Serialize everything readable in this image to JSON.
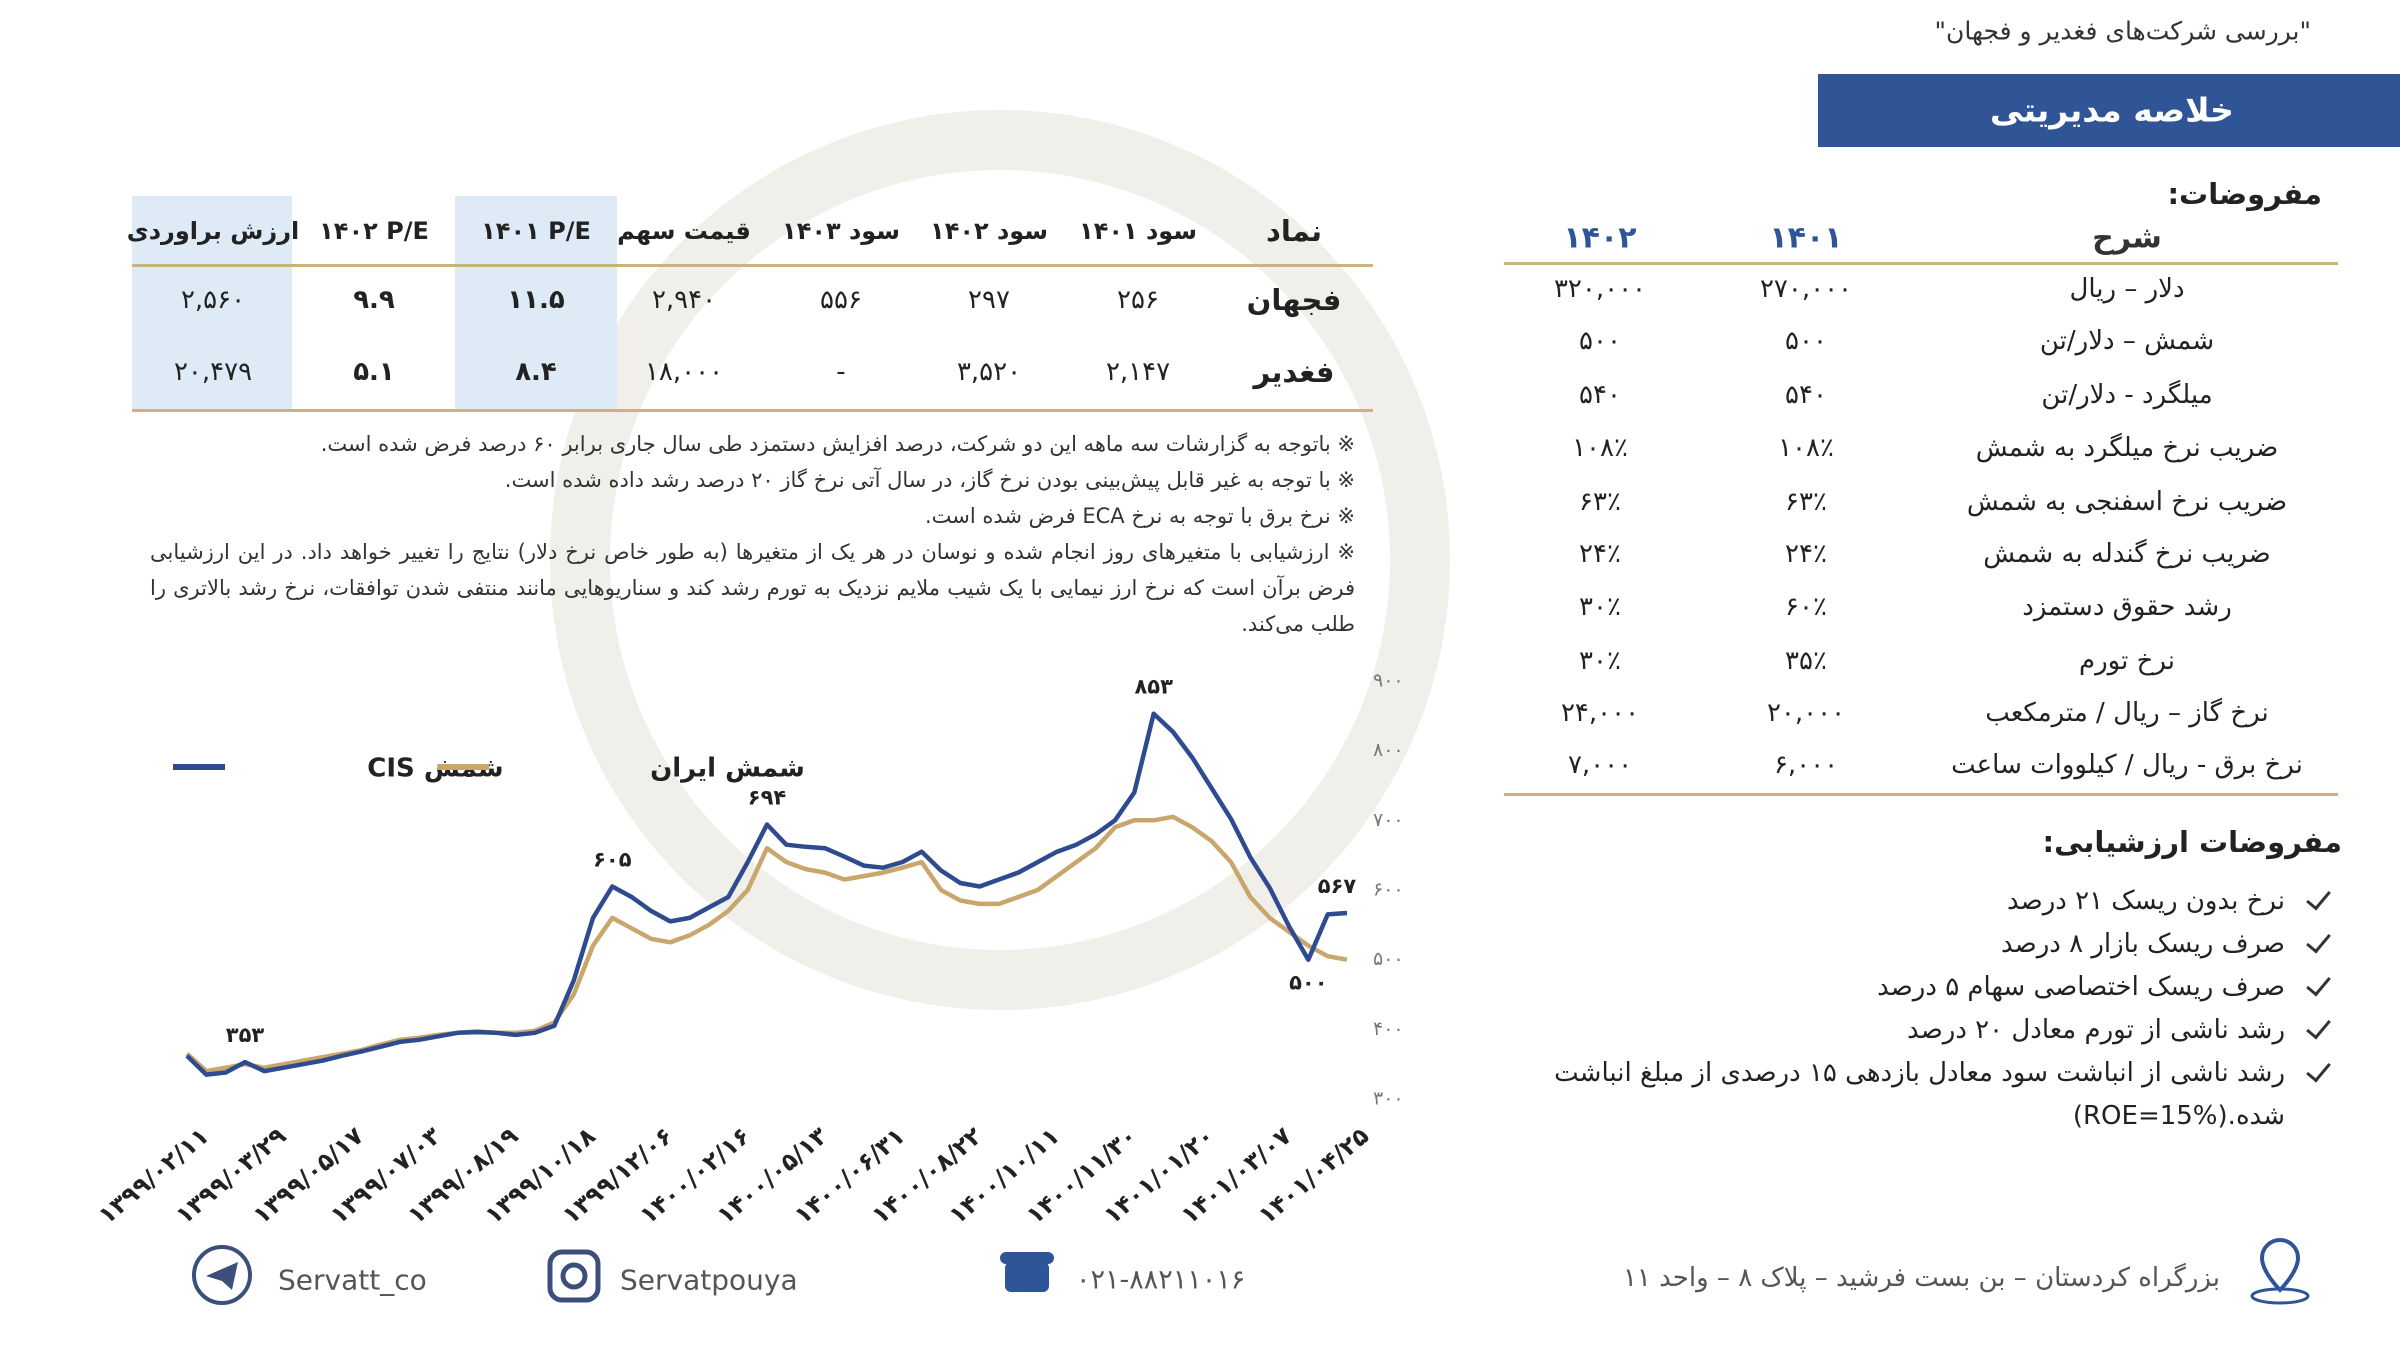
{
  "header": {
    "title": "\"بررسی شرکت‌های فغدیر و فجهان\""
  },
  "summary": {
    "title": "خلاصه مدیریتی"
  },
  "assumptions": {
    "title": "مفروضات:",
    "columns": [
      "شرح",
      "۱۴۰۱",
      "۱۴۰۲"
    ],
    "rows": [
      [
        "دلار – ریال",
        "۲۷۰,۰۰۰",
        "۳۲۰,۰۰۰"
      ],
      [
        "شمش – دلار/تن",
        "۵۰۰",
        "۵۰۰"
      ],
      [
        "میلگرد - دلار/تن",
        "۵۴۰",
        "۵۴۰"
      ],
      [
        "ضریب نرخ میلگرد به شمش",
        "۱۰۸٪",
        "۱۰۸٪"
      ],
      [
        "ضریب نرخ اسفنجی به شمش",
        "۶۳٪",
        "۶۳٪"
      ],
      [
        "ضریب نرخ گندله به شمش",
        "۲۴٪",
        "۲۴٪"
      ],
      [
        "رشد حقوق دستمزد",
        "۶۰٪",
        "۳۰٪"
      ],
      [
        "نرخ تورم",
        "۳۵٪",
        "۳۰٪"
      ],
      [
        "نرخ گاز – ریال / مترمکعب",
        "۲۰,۰۰۰",
        "۲۴,۰۰۰"
      ],
      [
        "نرخ برق - ریال / کیلووات ساعت",
        "۶,۰۰۰",
        "۷,۰۰۰"
      ]
    ]
  },
  "valuation_assumptions": {
    "title": "مفروضات ارزشیابی:",
    "items": [
      "نرخ بدون ریسک ۲۱ درصد",
      "صرف ریسک بازار ۸ درصد",
      "صرف ریسک اختصاصی سهام ۵ درصد",
      "رشد ناشی از تورم معادل ۲۰ درصد",
      "رشد ناشی از انباشت سود معادل بازدهی ۱۵ درصدی از مبلغ انباشت شده.(ROE=15%)"
    ]
  },
  "company_table": {
    "columns": [
      "نماد",
      "سود ۱۴۰۱",
      "سود ۱۴۰۲",
      "سود ۱۴۰۳",
      "قیمت سهم",
      "۱۴۰۱ P/E",
      "۱۴۰۲ P/E",
      "ارزش براوردی"
    ],
    "rows": [
      [
        "فجهان",
        "۲۵۶",
        "۲۹۷",
        "۵۵۶",
        "۲,۹۴۰",
        "۱۱.۵",
        "۹.۹",
        "۲,۵۶۰"
      ],
      [
        "فغدیر",
        "۲,۱۴۷",
        "۳,۵۲۰",
        "-",
        "۱۸,۰۰۰",
        "۸.۴",
        "۵.۱",
        "۲۰,۴۷۹"
      ]
    ]
  },
  "notes": [
    "※ باتوجه به گزارشات سه ماهه این دو شرکت، درصد افزایش دستمزد طی سال جاری برابر ۶۰ درصد فرض شده است.",
    "※ با توجه به غیر قابل پیش‌بینی بودن نرخ گاز، در سال آتی نرخ گاز ۲۰ درصد رشد داده شده است.",
    "※ نرخ برق با توجه به نرخ ECA فرض شده است.",
    "※ ارزشیابی با متغیرهای روز انجام شده و نوسان در هر یک از متغیرها (به طور خاص نرخ دلار) نتایج را تغییر خواهد داد. در این ارزشیابی فرض برآن است که نرخ ارز نیمایی با یک شیب ملایم نزدیک به تورم رشد کند و سناریوهایی مانند منتفی شدن توافقات، نرخ رشد بالاتری را طلب می‌کند."
  ],
  "chart_data": {
    "type": "line",
    "categories": [
      "۱۳۹۹/۰۲/۱۱",
      null,
      null,
      null,
      "۱۳۹۹/۰۳/۲۹",
      null,
      null,
      null,
      "۱۳۹۹/۰۵/۱۷",
      null,
      null,
      null,
      "۱۳۹۹/۰۷/۰۳",
      null,
      null,
      null,
      "۱۳۹۹/۰۸/۱۹",
      null,
      null,
      null,
      "۱۳۹۹/۱۰/۱۸",
      null,
      null,
      null,
      "۱۳۹۹/۱۲/۰۶",
      null,
      null,
      null,
      "۱۴۰۰/۰۲/۱۶",
      null,
      null,
      null,
      "۱۴۰۰/۰۵/۱۳",
      null,
      null,
      null,
      "۱۴۰۰/۰۶/۳۱",
      null,
      null,
      null,
      "۱۴۰۰/۰۸/۲۲",
      null,
      null,
      null,
      "۱۴۰۰/۱۰/۱۱",
      null,
      null,
      null,
      "۱۴۰۰/۱۱/۳۰",
      null,
      null,
      null,
      "۱۴۰۱/۰۱/۲۰",
      null,
      null,
      null,
      "۱۴۰۱/۰۳/۰۷",
      null,
      null,
      null,
      "۱۴۰۱/۰۴/۲۵"
    ],
    "series": [
      {
        "name": "شمش CIS",
        "color": "#2e4b8f",
        "values": [
          362,
          335,
          338,
          353,
          340,
          345,
          350,
          355,
          362,
          368,
          375,
          382,
          385,
          390,
          395,
          396,
          395,
          392,
          395,
          405,
          470,
          560,
          605,
          590,
          570,
          555,
          560,
          575,
          590,
          640,
          694,
          665,
          662,
          660,
          648,
          635,
          632,
          640,
          655,
          628,
          610,
          605,
          615,
          625,
          640,
          655,
          665,
          680,
          700,
          740,
          853,
          827,
          790,
          746,
          702,
          647,
          603,
          548,
          500,
          565,
          567
        ],
        "value_labels": [
          null,
          null,
          null,
          "۳۵۳",
          null,
          null,
          null,
          null,
          null,
          null,
          null,
          null,
          null,
          null,
          null,
          null,
          null,
          null,
          null,
          null,
          null,
          null,
          "۶۰۵",
          null,
          null,
          null,
          null,
          null,
          null,
          null,
          "۶۹۴",
          null,
          null,
          null,
          null,
          null,
          null,
          null,
          null,
          null,
          null,
          null,
          null,
          null,
          null,
          null,
          null,
          null,
          null,
          null,
          "۸۵۳",
          null,
          null,
          null,
          null,
          null,
          null,
          null,
          "۵۰۰",
          null,
          "۵۶۷"
        ]
      },
      {
        "name": "شمش ایران",
        "color": "#c9a66b",
        "values": [
          365,
          340,
          345,
          350,
          345,
          350,
          355,
          360,
          365,
          370,
          378,
          385,
          388,
          392,
          395,
          397,
          395,
          395,
          398,
          410,
          450,
          520,
          560,
          545,
          530,
          525,
          535,
          550,
          570,
          600,
          660,
          640,
          630,
          625,
          615,
          620,
          625,
          632,
          640,
          600,
          585,
          580,
          580,
          590,
          600,
          620,
          640,
          660,
          690,
          700,
          700,
          705,
          690,
          670,
          640,
          590,
          560,
          540,
          520,
          505,
          500
        ]
      }
    ],
    "ylim": [
      300,
      900
    ],
    "yticks": [
      {
        "value": 300,
        "label": "۳۰۰"
      },
      {
        "value": 400,
        "label": "۴۰۰"
      },
      {
        "value": 500,
        "label": "۵۰۰"
      },
      {
        "value": 600,
        "label": "۶۰۰"
      },
      {
        "value": 700,
        "label": "۷۰۰"
      },
      {
        "value": 800,
        "label": "۸۰۰"
      },
      {
        "value": 900,
        "label": "۹۰۰"
      }
    ],
    "grid": false,
    "legend": "upper left"
  },
  "footer": {
    "telegram": "Servatt_co",
    "instagram": "Servatpouya",
    "phone": "۰۲۱-۸۸۲۱۱۰۱۶",
    "address": "بزرگراه کردستان – بن بست فرشید – پلاک ۸ – واحد ۱۱"
  }
}
